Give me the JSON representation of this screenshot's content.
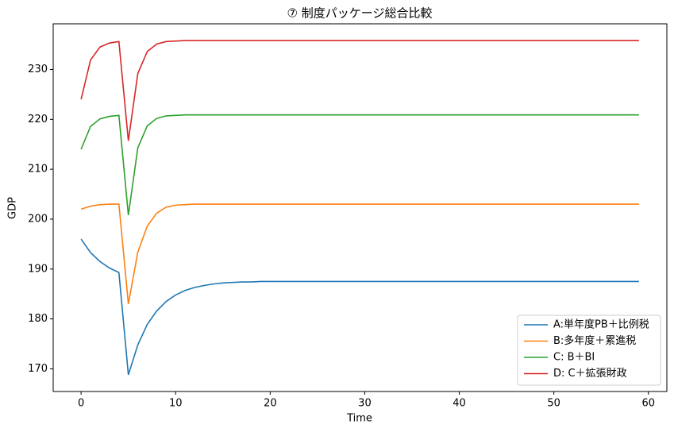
{
  "chart_data": {
    "type": "line",
    "title": "⑦ 制度パッケージ総合比較",
    "xlabel": "Time",
    "ylabel": "GDP",
    "x": [
      0,
      1,
      2,
      3,
      4,
      5,
      6,
      7,
      8,
      9,
      10,
      11,
      12,
      13,
      14,
      15,
      16,
      17,
      18,
      19,
      20,
      21,
      22,
      23,
      24,
      25,
      26,
      27,
      28,
      29,
      30,
      31,
      32,
      33,
      34,
      35,
      36,
      37,
      38,
      39,
      40,
      41,
      42,
      43,
      44,
      45,
      46,
      47,
      48,
      49,
      50,
      51,
      52,
      53,
      54,
      55,
      56,
      57,
      58,
      59
    ],
    "series": [
      {
        "name": "A:単年度PB＋比例税",
        "color": "#1f77b4",
        "values": [
          196.0,
          193.3,
          191.5,
          190.2,
          189.3,
          168.8,
          174.8,
          178.9,
          181.6,
          183.5,
          184.8,
          185.7,
          186.3,
          186.7,
          187.0,
          187.2,
          187.3,
          187.4,
          187.4,
          187.5,
          187.5,
          187.5,
          187.5,
          187.5,
          187.5,
          187.5,
          187.5,
          187.5,
          187.5,
          187.5,
          187.5,
          187.5,
          187.5,
          187.5,
          187.5,
          187.5,
          187.5,
          187.5,
          187.5,
          187.5,
          187.5,
          187.5,
          187.5,
          187.5,
          187.5,
          187.5,
          187.5,
          187.5,
          187.5,
          187.5,
          187.5,
          187.5,
          187.5,
          187.5,
          187.5,
          187.5,
          187.5,
          187.5,
          187.5,
          187.5
        ]
      },
      {
        "name": "B:多年度＋累進税",
        "color": "#ff7f0e",
        "values": [
          202.0,
          202.6,
          202.9,
          203,
          203,
          183.0,
          193.4,
          198.6,
          201.2,
          202.4,
          202.8,
          202.9,
          203,
          203,
          203,
          203,
          203,
          203,
          203,
          203,
          203,
          203,
          203,
          203,
          203,
          203,
          203,
          203,
          203,
          203,
          203,
          203,
          203,
          203,
          203,
          203,
          203,
          203,
          203,
          203,
          203,
          203,
          203,
          203,
          203,
          203,
          203,
          203,
          203,
          203,
          203,
          203,
          203,
          203,
          203,
          203,
          203,
          203,
          203,
          203
        ]
      },
      {
        "name": "C: B＋BI",
        "color": "#2ca02c",
        "values": [
          214.0,
          218.6,
          220.1,
          220.6,
          220.8,
          200.8,
          214.3,
          218.7,
          220.2,
          220.7,
          220.8,
          220.9,
          220.9,
          220.9,
          220.9,
          220.9,
          220.9,
          220.9,
          220.9,
          220.9,
          220.9,
          220.9,
          220.9,
          220.9,
          220.9,
          220.9,
          220.9,
          220.9,
          220.9,
          220.9,
          220.9,
          220.9,
          220.9,
          220.9,
          220.9,
          220.9,
          220.9,
          220.9,
          220.9,
          220.9,
          220.9,
          220.9,
          220.9,
          220.9,
          220.9,
          220.9,
          220.9,
          220.9,
          220.9,
          220.9,
          220.9,
          220.9,
          220.9,
          220.9,
          220.9,
          220.9,
          220.9,
          220.9,
          220.9,
          220.9
        ]
      },
      {
        "name": "D: C＋拡張財政",
        "color": "#d62728",
        "values": [
          224.0,
          231.9,
          234.5,
          235.3,
          235.6,
          215.7,
          229.2,
          233.6,
          235.1,
          235.6,
          235.7,
          235.8,
          235.8,
          235.8,
          235.8,
          235.8,
          235.8,
          235.8,
          235.8,
          235.8,
          235.8,
          235.8,
          235.8,
          235.8,
          235.8,
          235.8,
          235.8,
          235.8,
          235.8,
          235.8,
          235.8,
          235.8,
          235.8,
          235.8,
          235.8,
          235.8,
          235.8,
          235.8,
          235.8,
          235.8,
          235.8,
          235.8,
          235.8,
          235.8,
          235.8,
          235.8,
          235.8,
          235.8,
          235.8,
          235.8,
          235.8,
          235.8,
          235.8,
          235.8,
          235.8,
          235.8,
          235.8,
          235.8,
          235.8,
          235.8
        ]
      }
    ],
    "xlim": [
      -2.95,
      61.95
    ],
    "ylim": [
      165.45,
      239.15
    ],
    "xticks": [
      0,
      10,
      20,
      30,
      40,
      50,
      60
    ],
    "yticks": [
      170,
      180,
      190,
      200,
      210,
      220,
      230
    ],
    "legend": "lower right"
  }
}
